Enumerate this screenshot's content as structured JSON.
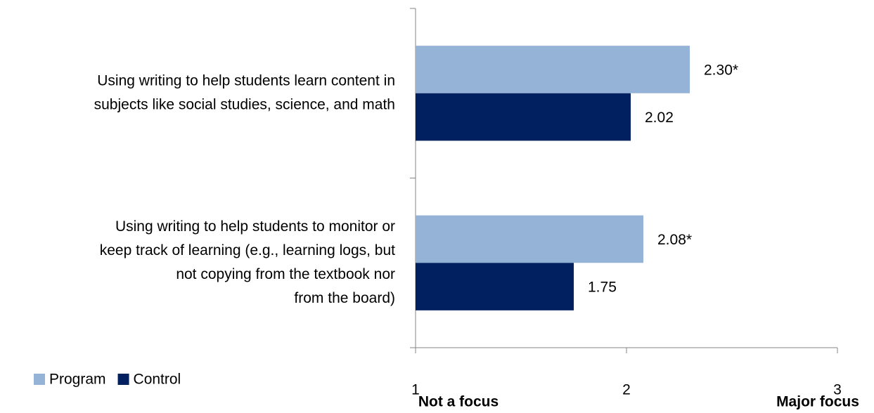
{
  "chart_data": {
    "type": "bar",
    "orientation": "horizontal",
    "categories": [
      [
        "Using writing to help students learn content in",
        "subjects like social studies, science, and math"
      ],
      [
        "Using writing to help students to monitor or",
        "keep track of learning (e.g., learning logs, but",
        "not copying from the textbook nor",
        "from the board)"
      ]
    ],
    "series": [
      {
        "name": "Program",
        "color": "#95b3d7",
        "values": [
          2.3,
          2.08
        ],
        "value_labels": [
          "2.30*",
          "2.08*"
        ]
      },
      {
        "name": "Control",
        "color": "#002060",
        "values": [
          2.02,
          1.75
        ]
      }
    ],
    "xlim": [
      1,
      3
    ],
    "xticks": [
      1,
      2,
      3
    ],
    "x_axis_labels": {
      "low": "Not a focus",
      "high": "Major focus"
    },
    "legend": "bottom-left"
  }
}
